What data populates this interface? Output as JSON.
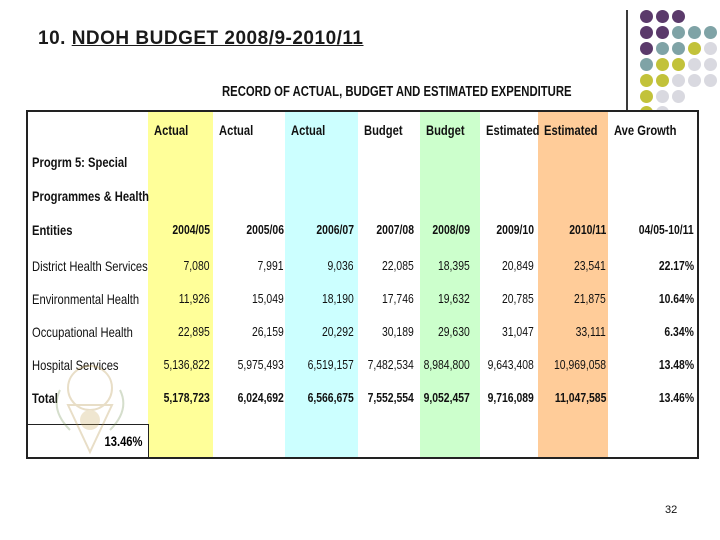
{
  "slide": {
    "title_number": "10.",
    "title_text": "NDOH BUDGET 2008/9-2010/11",
    "page_number": "32"
  },
  "table": {
    "title": "RECORD OF ACTUAL, BUDGET AND ESTIMATED EXPENDITURE",
    "column_types": [
      "Actual",
      "Actual",
      "Actual",
      "Budget",
      "Budget",
      "Estimated",
      "Estimated",
      "Ave Growth"
    ],
    "column_years": [
      "2004/05",
      "2005/06",
      "2006/07",
      "2007/08",
      "2008/09",
      "2009/10",
      "2010/11",
      "04/05-10/11"
    ],
    "column_colors": [
      "#ffff99",
      "#ffffff",
      "#ccffff",
      "#ffffff",
      "#ccffcc",
      "#ffffff",
      "#ffcc99",
      "#ffffff"
    ],
    "header_label_lines": [
      "Progrm 5: Special",
      "Programmes & Health",
      "Entities"
    ],
    "rows": [
      {
        "label": "District Health Services",
        "values": [
          "7,080",
          "7,991",
          "9,036",
          "22,085",
          "18,395",
          "20,849",
          "23,541",
          "22.17%"
        ]
      },
      {
        "label": "Environmental Health",
        "values": [
          "11,926",
          "15,049",
          "18,190",
          "17,746",
          "19,632",
          "20,785",
          "21,875",
          "10.64%"
        ]
      },
      {
        "label": "Occupational Health",
        "values": [
          "22,895",
          "26,159",
          "20,292",
          "30,189",
          "29,630",
          "31,047",
          "33,111",
          "6.34%"
        ]
      },
      {
        "label": "Hospital Services",
        "values": [
          "5,136,822",
          "5,975,493",
          "6,519,157",
          "7,482,534",
          "8,984,800",
          "9,643,408",
          "10,969,058",
          "13.48%"
        ]
      },
      {
        "label": "Total",
        "values": [
          "5,178,723",
          "6,024,692",
          "6,566,675",
          "7,552,554",
          "9,052,457",
          "9,716,089",
          "11,047,585",
          "13.46%"
        ]
      }
    ],
    "growth_summary": "13.46%"
  },
  "colors": {
    "dot_purple": "#5b3a6b",
    "dot_teal": "#7fa3a6",
    "dot_olive": "#c2c23a",
    "dot_light": "#d9d9e0"
  }
}
